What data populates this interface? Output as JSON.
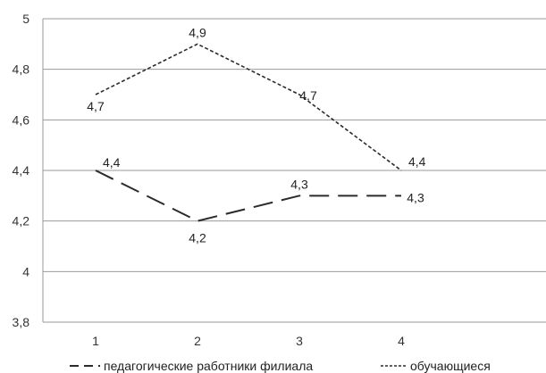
{
  "chart_data": {
    "type": "line",
    "categories": [
      "1",
      "2",
      "3",
      "4"
    ],
    "series": [
      {
        "name": "педагогические работники филиала",
        "values": [
          4.4,
          4.2,
          4.3,
          4.3
        ],
        "labels": [
          "4,4",
          "4,2",
          "4,3",
          "4,3"
        ],
        "style": "long-dash",
        "color": "#2b2b2b"
      },
      {
        "name": "обучающиеся",
        "values": [
          4.7,
          4.9,
          4.7,
          4.4
        ],
        "labels": [
          "4,7",
          "4,9",
          "4,7",
          "4,4"
        ],
        "style": "short-dash",
        "color": "#2b2b2b"
      }
    ],
    "yticks": [
      "3,8",
      "4",
      "4,2",
      "4,4",
      "4,6",
      "4,8",
      "5"
    ],
    "ylim": [
      3.8,
      5
    ],
    "grid": true,
    "legend_position": "bottom"
  }
}
